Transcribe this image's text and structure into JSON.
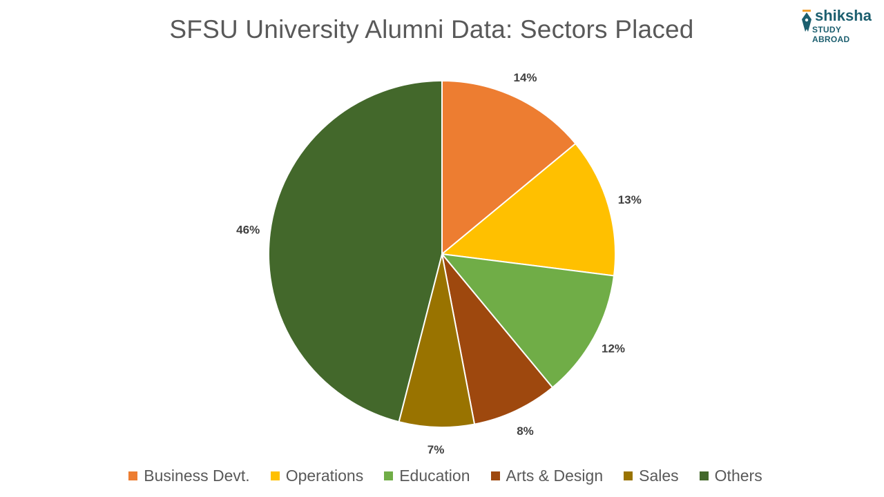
{
  "header": {
    "title": "SFSU University Alumni Data: Sectors Placed",
    "logo_main": "shiksha",
    "logo_sub": "STUDY ABROAD",
    "logo_icon": "pen-nib-icon"
  },
  "chart_data": {
    "type": "pie",
    "title": "SFSU University Alumni Data: Sectors Placed",
    "categories": [
      "Business Devt.",
      "Operations",
      "Education",
      "Arts & Design",
      "Sales",
      "Others"
    ],
    "values": [
      14,
      13,
      12,
      8,
      7,
      46
    ],
    "labels": [
      "14%",
      "13%",
      "12%",
      "8%",
      "7%",
      "46%"
    ],
    "colors": [
      "#ED7D31",
      "#FFC000",
      "#70AD47",
      "#9E480E",
      "#997300",
      "#43682B"
    ],
    "legend": "bottom",
    "start": "12 o'clock, clockwise"
  }
}
